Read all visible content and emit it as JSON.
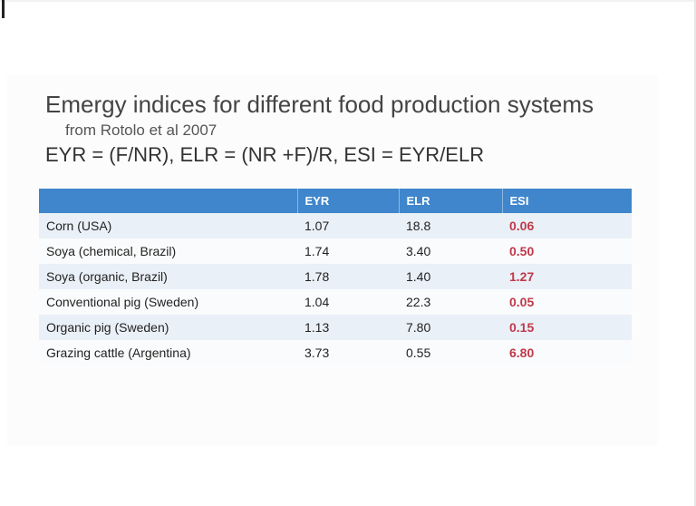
{
  "slide": {
    "title": "Emergy indices for different food production systems",
    "subtitle": "from Rotolo et al 2007",
    "formula": "EYR = (F/NR),  ELR = (NR +F)/R,  ESI = EYR/ELR"
  },
  "table": {
    "headers": [
      "",
      "EYR",
      "ELR",
      "ESI"
    ],
    "rows": [
      {
        "name": "Corn (USA)",
        "eyr": "1.07",
        "elr": "18.8",
        "esi": "0.06"
      },
      {
        "name": "Soya (chemical, Brazil)",
        "eyr": "1.74",
        "elr": "3.40",
        "esi": "0.50"
      },
      {
        "name": "Soya (organic, Brazil)",
        "eyr": "1.78",
        "elr": "1.40",
        "esi": "1.27"
      },
      {
        "name": "Conventional pig (Sweden)",
        "eyr": "1.04",
        "elr": "22.3",
        "esi": "0.05"
      },
      {
        "name": "Organic pig (Sweden)",
        "eyr": "1.13",
        "elr": "7.80",
        "esi": "0.15"
      },
      {
        "name": "Grazing cattle (Argentina)",
        "eyr": "3.73",
        "elr": "0.55",
        "esi": "6.80"
      }
    ]
  },
  "colors": {
    "header_bg": "#3f86cc",
    "esi_text": "#c0394a",
    "row_band": "#eaf0f7"
  }
}
